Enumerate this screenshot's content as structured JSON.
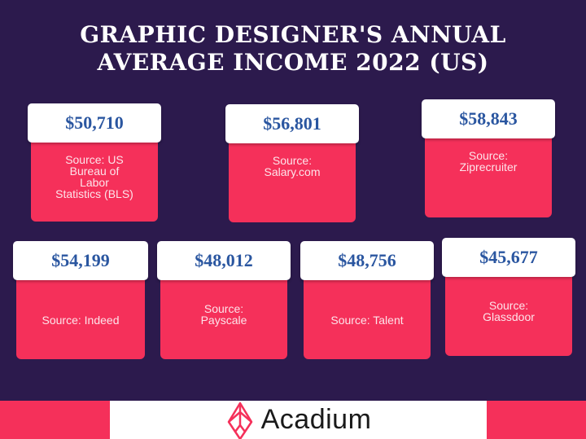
{
  "title": {
    "line1": "GRAPHIC DESIGNER'S ANNUAL",
    "line2": "AVERAGE INCOME 2022 (US)"
  },
  "cards": [
    {
      "value": "$50,710",
      "source": "Source: US\nBureau of\nLabor\nStatistics (BLS)"
    },
    {
      "value": "$56,801",
      "source": "Source:\nSalary.com"
    },
    {
      "value": "$58,843",
      "source": "Source:\nZiprecruiter"
    },
    {
      "value": "$54,199",
      "source": "Source: Indeed"
    },
    {
      "value": "$48,012",
      "source": "Source:\nPayscale"
    },
    {
      "value": "$48,756",
      "source": "Source: Talent"
    },
    {
      "value": "$45,677",
      "source": "Source:\nGlassdoor"
    }
  ],
  "footer": {
    "brand": "Acadium",
    "logo_icon": "acadium-diamond-logo"
  },
  "colors": {
    "background": "#2c1a4d",
    "accent": "#f5305a",
    "value_text": "#2a56a0"
  }
}
